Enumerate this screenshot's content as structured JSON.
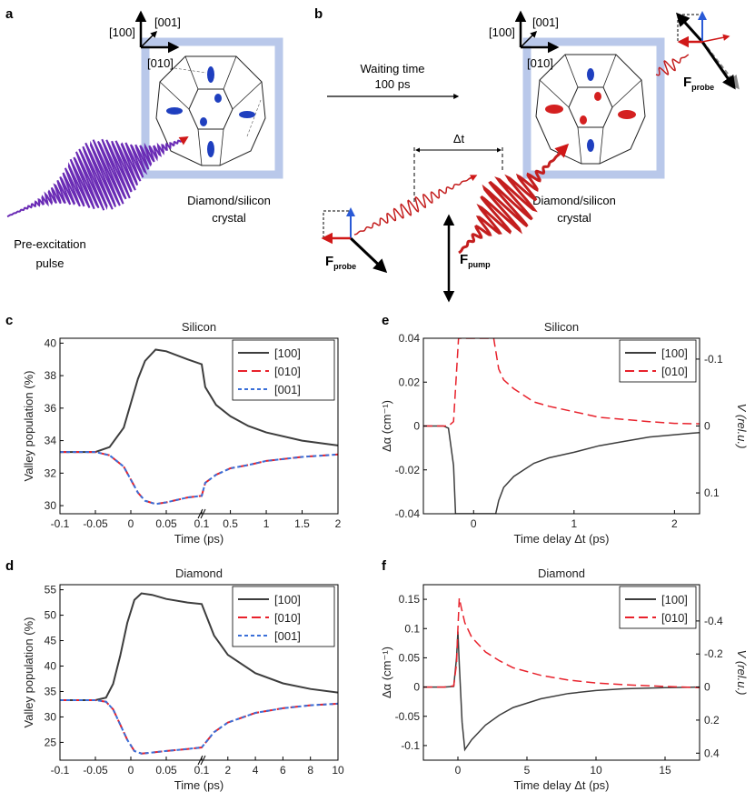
{
  "panel_letters": {
    "a": "a",
    "b": "b",
    "c": "c",
    "d": "d",
    "e": "e",
    "f": "f"
  },
  "colors": {
    "dark": "#3d3d3d",
    "red": "#e8222c",
    "blue": "#3a6fd8",
    "purple": "#6a2bb5",
    "pulse_red": "#c41e1e",
    "frame": "#b9c8ea",
    "ellipsoid_blue": "#1f3fbf",
    "ellipsoid_red": "#d42020"
  },
  "schematic": {
    "axis_labels": {
      "x100": "[100]",
      "x001": "[001]",
      "x010": "[010]"
    },
    "preexcitation": {
      "line1": "Pre-excitation",
      "line2": "pulse"
    },
    "crystal_label": {
      "line1": "Diamond/silicon",
      "line2": "crystal"
    },
    "waiting": {
      "line1": "Waiting time",
      "line2": "100 ps"
    },
    "delta_t": "Δt",
    "f_probe": {
      "main": "F",
      "sub": "probe"
    },
    "f_pump": {
      "main": "F",
      "sub": "pump"
    }
  },
  "chart_data": [
    {
      "id": "c",
      "type": "line",
      "title": "Silicon",
      "xlabel": "Time (ps)",
      "ylabel": "Valley population (%)",
      "xticks": [
        "-0.1",
        "-0.05",
        "0",
        "0.05",
        "0.1",
        "0.5",
        "1",
        "1.5",
        "2"
      ],
      "yticks": [
        "30",
        "32",
        "34",
        "36",
        "38",
        "40"
      ],
      "ylim": [
        29.5,
        40.3
      ],
      "x_axis_note": "piecewise axis: -0.1 to 0.1 ps then 0.1 to 2 ps (axis break at 0.1)",
      "legend": [
        "[100]",
        "[010]",
        "[001]"
      ],
      "series": [
        {
          "name": "[100]",
          "x": [
            -0.1,
            -0.05,
            -0.03,
            -0.01,
            0.0,
            0.01,
            0.02,
            0.035,
            0.05,
            0.08,
            0.1,
            0.15,
            0.3,
            0.5,
            0.75,
            1.0,
            1.5,
            2.0
          ],
          "values": [
            33.3,
            33.3,
            33.6,
            34.8,
            36.3,
            37.8,
            38.9,
            39.6,
            39.5,
            39.0,
            38.7,
            37.3,
            36.2,
            35.5,
            34.9,
            34.5,
            34.0,
            33.7
          ]
        },
        {
          "name": "[010]",
          "x": [
            -0.1,
            -0.05,
            -0.03,
            -0.01,
            0.0,
            0.01,
            0.02,
            0.035,
            0.05,
            0.08,
            0.1,
            0.15,
            0.3,
            0.5,
            0.75,
            1.0,
            1.5,
            2.0
          ],
          "values": [
            33.3,
            33.3,
            33.1,
            32.4,
            31.6,
            30.8,
            30.3,
            30.1,
            30.2,
            30.5,
            30.6,
            31.4,
            31.9,
            32.3,
            32.5,
            32.75,
            33.0,
            33.15
          ]
        },
        {
          "name": "[001]",
          "x": [
            -0.1,
            -0.05,
            -0.03,
            -0.01,
            0.0,
            0.01,
            0.02,
            0.035,
            0.05,
            0.08,
            0.1,
            0.15,
            0.3,
            0.5,
            0.75,
            1.0,
            1.5,
            2.0
          ],
          "values": [
            33.3,
            33.3,
            33.1,
            32.4,
            31.6,
            30.8,
            30.3,
            30.1,
            30.2,
            30.5,
            30.6,
            31.4,
            31.9,
            32.3,
            32.5,
            32.75,
            33.0,
            33.15
          ]
        }
      ]
    },
    {
      "id": "d",
      "type": "line",
      "title": "Diamond",
      "xlabel": "Time (ps)",
      "ylabel": "Valley population (%)",
      "xticks": [
        "-0.1",
        "-0.05",
        "0",
        "0.05",
        "0.1",
        "2",
        "4",
        "6",
        "8",
        "10"
      ],
      "yticks": [
        "25",
        "30",
        "35",
        "40",
        "45",
        "50",
        "55"
      ],
      "ylim": [
        21.5,
        56
      ],
      "x_axis_note": "piecewise axis: -0.1 to 0.1 ps then 0.1 to 10 ps (axis break at 0.1)",
      "legend": [
        "[100]",
        "[010]",
        "[001]"
      ],
      "series": [
        {
          "name": "[100]",
          "x": [
            -0.1,
            -0.05,
            -0.035,
            -0.025,
            -0.015,
            -0.005,
            0.005,
            0.015,
            0.03,
            0.05,
            0.08,
            0.1,
            1,
            2,
            4,
            6,
            8,
            10
          ],
          "values": [
            33.3,
            33.3,
            33.8,
            36.5,
            42.0,
            48.5,
            53.0,
            54.3,
            54.0,
            53.2,
            52.5,
            52.2,
            46.0,
            42.2,
            38.6,
            36.6,
            35.5,
            34.8
          ]
        },
        {
          "name": "[010]",
          "x": [
            -0.1,
            -0.05,
            -0.035,
            -0.025,
            -0.015,
            -0.005,
            0.005,
            0.015,
            0.03,
            0.05,
            0.08,
            0.1,
            1,
            2,
            4,
            6,
            8,
            10
          ],
          "values": [
            33.3,
            33.3,
            33.0,
            31.5,
            28.5,
            25.5,
            23.3,
            22.8,
            23.0,
            23.3,
            23.7,
            24.0,
            27.0,
            28.9,
            30.8,
            31.7,
            32.3,
            32.6
          ]
        },
        {
          "name": "[001]",
          "x": [
            -0.1,
            -0.05,
            -0.035,
            -0.025,
            -0.015,
            -0.005,
            0.005,
            0.015,
            0.03,
            0.05,
            0.08,
            0.1,
            1,
            2,
            4,
            6,
            8,
            10
          ],
          "values": [
            33.3,
            33.3,
            33.0,
            31.5,
            28.5,
            25.5,
            23.3,
            22.8,
            23.0,
            23.3,
            23.7,
            24.0,
            27.0,
            28.9,
            30.8,
            31.7,
            32.3,
            32.6
          ]
        }
      ]
    },
    {
      "id": "e",
      "type": "line",
      "title": "Silicon",
      "xlabel": "Time delay Δt (ps)",
      "ylabel_left": "Δα (cm⁻¹)",
      "ylabel_right": "V (rel.u.)",
      "xlim": [
        -0.5,
        2.25
      ],
      "ylim": [
        -0.04,
        0.04
      ],
      "xticks": [
        "0",
        "1",
        "2"
      ],
      "yticks_left": [
        "-0.04",
        "-0.02",
        "0",
        "0.02",
        "0.04"
      ],
      "yticks_right": [
        "-0.1",
        "0",
        "0.1"
      ],
      "legend": [
        "[100]",
        "[010]"
      ],
      "series": [
        {
          "name": "[100]",
          "x": [
            -0.5,
            -0.3,
            -0.25,
            -0.2,
            -0.18,
            0.22,
            0.25,
            0.3,
            0.4,
            0.5,
            0.6,
            0.75,
            1.0,
            1.25,
            1.5,
            1.75,
            2.0,
            2.25
          ],
          "values": [
            0.0,
            0.0,
            -0.001,
            -0.018,
            -0.04,
            -0.04,
            -0.034,
            -0.028,
            -0.023,
            -0.02,
            -0.017,
            -0.0145,
            -0.012,
            -0.009,
            -0.007,
            -0.005,
            -0.004,
            -0.003
          ]
        },
        {
          "name": "[010]",
          "x": [
            -0.5,
            -0.3,
            -0.25,
            -0.2,
            -0.15,
            0.2,
            0.25,
            0.3,
            0.4,
            0.5,
            0.6,
            0.75,
            1.0,
            1.25,
            1.5,
            1.75,
            2.0,
            2.25
          ],
          "values": [
            0.0,
            0.0,
            0.0,
            0.002,
            0.04,
            0.04,
            0.026,
            0.021,
            0.017,
            0.014,
            0.011,
            0.009,
            0.0065,
            0.004,
            0.003,
            0.002,
            0.0012,
            0.001
          ]
        }
      ]
    },
    {
      "id": "f",
      "type": "line",
      "title": "Diamond",
      "xlabel": "Time delay Δt (ps)",
      "ylabel_left": "Δα (cm⁻¹)",
      "ylabel_right": "V (rel.u.)",
      "xlim": [
        -2.5,
        17.5
      ],
      "ylim": [
        -0.125,
        0.175
      ],
      "xticks": [
        "0",
        "5",
        "10",
        "15"
      ],
      "yticks_left": [
        "-0.1",
        "-0.05",
        "0",
        "0.05",
        "0.1",
        "0.15"
      ],
      "yticks_right": [
        "-0.4",
        "-0.2",
        "0",
        "0.2",
        "0.4"
      ],
      "legend": [
        "[100]",
        "[010]"
      ],
      "series": [
        {
          "name": "[100]",
          "x": [
            -2.5,
            -1,
            -0.3,
            -0.1,
            0.0,
            0.1,
            0.3,
            0.5,
            1,
            2,
            3,
            4,
            6,
            8,
            10,
            12,
            15,
            17.5
          ],
          "values": [
            0.0,
            0.0,
            0.001,
            0.05,
            0.095,
            0.04,
            -0.06,
            -0.107,
            -0.09,
            -0.065,
            -0.048,
            -0.035,
            -0.02,
            -0.011,
            -0.006,
            -0.003,
            -0.001,
            0.0
          ]
        },
        {
          "name": "[010]",
          "x": [
            -2.5,
            -1,
            -0.3,
            -0.1,
            0.0,
            0.1,
            0.25,
            0.5,
            1,
            2,
            3,
            4,
            6,
            8,
            10,
            12,
            15,
            17.5
          ],
          "values": [
            0.0,
            0.0,
            0.002,
            0.04,
            0.1,
            0.152,
            0.135,
            0.11,
            0.085,
            0.06,
            0.045,
            0.033,
            0.02,
            0.012,
            0.007,
            0.004,
            0.001,
            -0.001
          ]
        }
      ]
    }
  ]
}
